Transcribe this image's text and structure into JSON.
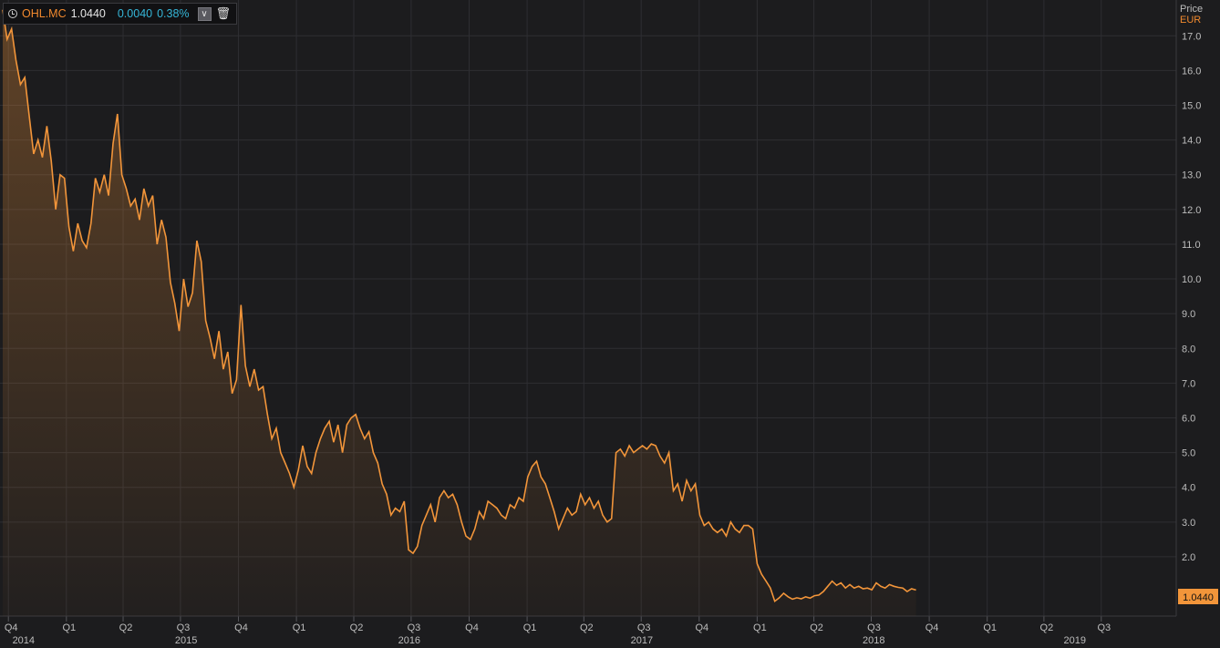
{
  "header": {
    "ticker": "OHL.MC",
    "last": "1.0440",
    "change": "0.0040",
    "change_pct": "0.38%",
    "clock_icon": "clock-icon",
    "dropdown_icon": "chevron-down-icon",
    "delete_icon": "trash-icon"
  },
  "axis": {
    "title": "Price",
    "currency": "EUR"
  },
  "colors": {
    "background": "#1c1c1e",
    "line": "#f2953a",
    "grid": "#2e2e32",
    "text": "#bdbdbd",
    "accent": "#f28a2e",
    "change": "#35b6d8"
  },
  "chart_data": {
    "type": "area",
    "ylim": [
      0.45,
      17.9
    ],
    "y_ticks": [
      "2.0",
      "3.0",
      "4.0",
      "5.0",
      "6.0",
      "7.0",
      "8.0",
      "9.0",
      "10.0",
      "11.0",
      "12.0",
      "13.0",
      "14.0",
      "15.0",
      "16.0",
      "17.0"
    ],
    "x_range": [
      "2014-09-22",
      "2019-09-29"
    ],
    "quarter_ticks": [
      {
        "label": "Q4",
        "date": "2014-10-01"
      },
      {
        "label": "Q1",
        "date": "2015-01-01"
      },
      {
        "label": "Q2",
        "date": "2015-04-01"
      },
      {
        "label": "Q3",
        "date": "2015-07-01"
      },
      {
        "label": "Q4",
        "date": "2015-10-01"
      },
      {
        "label": "Q1",
        "date": "2016-01-01"
      },
      {
        "label": "Q2",
        "date": "2016-04-01"
      },
      {
        "label": "Q3",
        "date": "2016-07-01"
      },
      {
        "label": "Q4",
        "date": "2016-10-01"
      },
      {
        "label": "Q1",
        "date": "2017-01-01"
      },
      {
        "label": "Q2",
        "date": "2017-04-01"
      },
      {
        "label": "Q3",
        "date": "2017-07-01"
      },
      {
        "label": "Q4",
        "date": "2017-10-01"
      },
      {
        "label": "Q1",
        "date": "2018-01-01"
      },
      {
        "label": "Q2",
        "date": "2018-04-01"
      },
      {
        "label": "Q3",
        "date": "2018-07-01"
      },
      {
        "label": "Q4",
        "date": "2018-10-01"
      },
      {
        "label": "Q1",
        "date": "2019-01-01"
      },
      {
        "label": "Q2",
        "date": "2019-04-01"
      },
      {
        "label": "Q3",
        "date": "2019-07-01"
      }
    ],
    "year_ticks": [
      {
        "label": "2014",
        "date": "2014-10-25"
      },
      {
        "label": "2015",
        "date": "2015-07-10"
      },
      {
        "label": "2016",
        "date": "2016-06-28"
      },
      {
        "label": "2017",
        "date": "2017-07-02"
      },
      {
        "label": "2018",
        "date": "2018-07-05"
      },
      {
        "label": "2019",
        "date": "2019-05-20"
      }
    ],
    "last_value_label": "1.0440",
    "series": [
      {
        "points": [
          [
            "2014-09-22",
            17.75
          ],
          [
            "2014-09-29",
            16.9
          ],
          [
            "2014-10-06",
            17.2
          ],
          [
            "2014-10-13",
            16.3
          ],
          [
            "2014-10-20",
            15.6
          ],
          [
            "2014-10-27",
            15.8
          ],
          [
            "2014-11-03",
            14.7
          ],
          [
            "2014-11-10",
            13.6
          ],
          [
            "2014-11-17",
            14.0
          ],
          [
            "2014-11-24",
            13.5
          ],
          [
            "2014-12-01",
            14.4
          ],
          [
            "2014-12-08",
            13.4
          ],
          [
            "2014-12-15",
            12.0
          ],
          [
            "2014-12-22",
            13.0
          ],
          [
            "2014-12-29",
            12.9
          ],
          [
            "2015-01-05",
            11.5
          ],
          [
            "2015-01-12",
            10.8
          ],
          [
            "2015-01-19",
            11.6
          ],
          [
            "2015-01-26",
            11.1
          ],
          [
            "2015-02-02",
            10.9
          ],
          [
            "2015-02-09",
            11.6
          ],
          [
            "2015-02-16",
            12.9
          ],
          [
            "2015-02-23",
            12.5
          ],
          [
            "2015-03-02",
            13.0
          ],
          [
            "2015-03-09",
            12.4
          ],
          [
            "2015-03-16",
            13.9
          ],
          [
            "2015-03-23",
            14.75
          ],
          [
            "2015-03-30",
            13.0
          ],
          [
            "2015-04-06",
            12.6
          ],
          [
            "2015-04-13",
            12.1
          ],
          [
            "2015-04-20",
            12.3
          ],
          [
            "2015-04-27",
            11.7
          ],
          [
            "2015-05-04",
            12.6
          ],
          [
            "2015-05-11",
            12.1
          ],
          [
            "2015-05-18",
            12.4
          ],
          [
            "2015-05-25",
            11.0
          ],
          [
            "2015-06-01",
            11.7
          ],
          [
            "2015-06-08",
            11.2
          ],
          [
            "2015-06-15",
            9.9
          ],
          [
            "2015-06-22",
            9.3
          ],
          [
            "2015-06-29",
            8.5
          ],
          [
            "2015-07-06",
            10.0
          ],
          [
            "2015-07-13",
            9.2
          ],
          [
            "2015-07-20",
            9.6
          ],
          [
            "2015-07-27",
            11.1
          ],
          [
            "2015-08-03",
            10.5
          ],
          [
            "2015-08-10",
            8.8
          ],
          [
            "2015-08-17",
            8.3
          ],
          [
            "2015-08-24",
            7.7
          ],
          [
            "2015-08-31",
            8.5
          ],
          [
            "2015-09-07",
            7.4
          ],
          [
            "2015-09-14",
            7.9
          ],
          [
            "2015-09-21",
            6.7
          ],
          [
            "2015-09-28",
            7.1
          ],
          [
            "2015-10-05",
            9.25
          ],
          [
            "2015-10-12",
            7.5
          ],
          [
            "2015-10-19",
            6.9
          ],
          [
            "2015-10-26",
            7.4
          ],
          [
            "2015-11-02",
            6.8
          ],
          [
            "2015-11-09",
            6.9
          ],
          [
            "2015-11-16",
            6.1
          ],
          [
            "2015-11-23",
            5.4
          ],
          [
            "2015-11-30",
            5.7
          ],
          [
            "2015-12-07",
            5.0
          ],
          [
            "2015-12-14",
            4.7
          ],
          [
            "2015-12-21",
            4.4
          ],
          [
            "2015-12-28",
            4.0
          ],
          [
            "2016-01-04",
            4.5
          ],
          [
            "2016-01-11",
            5.2
          ],
          [
            "2016-01-18",
            4.6
          ],
          [
            "2016-01-25",
            4.4
          ],
          [
            "2016-02-01",
            5.0
          ],
          [
            "2016-02-08",
            5.4
          ],
          [
            "2016-02-15",
            5.7
          ],
          [
            "2016-02-22",
            5.9
          ],
          [
            "2016-02-29",
            5.3
          ],
          [
            "2016-03-07",
            5.8
          ],
          [
            "2016-03-14",
            5.0
          ],
          [
            "2016-03-21",
            5.8
          ],
          [
            "2016-03-28",
            6.0
          ],
          [
            "2016-04-04",
            6.1
          ],
          [
            "2016-04-11",
            5.7
          ],
          [
            "2016-04-18",
            5.4
          ],
          [
            "2016-04-25",
            5.6
          ],
          [
            "2016-05-02",
            5.0
          ],
          [
            "2016-05-09",
            4.7
          ],
          [
            "2016-05-16",
            4.1
          ],
          [
            "2016-05-23",
            3.8
          ],
          [
            "2016-05-30",
            3.2
          ],
          [
            "2016-06-06",
            3.4
          ],
          [
            "2016-06-13",
            3.3
          ],
          [
            "2016-06-20",
            3.6
          ],
          [
            "2016-06-27",
            2.2
          ],
          [
            "2016-07-04",
            2.1
          ],
          [
            "2016-07-11",
            2.3
          ],
          [
            "2016-07-18",
            2.9
          ],
          [
            "2016-07-25",
            3.2
          ],
          [
            "2016-08-01",
            3.5
          ],
          [
            "2016-08-08",
            3.0
          ],
          [
            "2016-08-15",
            3.7
          ],
          [
            "2016-08-22",
            3.9
          ],
          [
            "2016-08-29",
            3.7
          ],
          [
            "2016-09-05",
            3.8
          ],
          [
            "2016-09-12",
            3.5
          ],
          [
            "2016-09-19",
            3.0
          ],
          [
            "2016-09-26",
            2.6
          ],
          [
            "2016-10-03",
            2.5
          ],
          [
            "2016-10-10",
            2.8
          ],
          [
            "2016-10-17",
            3.3
          ],
          [
            "2016-10-24",
            3.1
          ],
          [
            "2016-10-31",
            3.6
          ],
          [
            "2016-11-07",
            3.5
          ],
          [
            "2016-11-14",
            3.4
          ],
          [
            "2016-11-21",
            3.2
          ],
          [
            "2016-11-28",
            3.1
          ],
          [
            "2016-12-05",
            3.5
          ],
          [
            "2016-12-12",
            3.4
          ],
          [
            "2016-12-19",
            3.7
          ],
          [
            "2016-12-26",
            3.6
          ],
          [
            "2017-01-02",
            4.3
          ],
          [
            "2017-01-09",
            4.6
          ],
          [
            "2017-01-16",
            4.75
          ],
          [
            "2017-01-23",
            4.3
          ],
          [
            "2017-01-30",
            4.1
          ],
          [
            "2017-02-06",
            3.7
          ],
          [
            "2017-02-13",
            3.3
          ],
          [
            "2017-02-20",
            2.8
          ],
          [
            "2017-02-27",
            3.1
          ],
          [
            "2017-03-06",
            3.4
          ],
          [
            "2017-03-13",
            3.2
          ],
          [
            "2017-03-20",
            3.3
          ],
          [
            "2017-03-27",
            3.8
          ],
          [
            "2017-04-03",
            3.5
          ],
          [
            "2017-04-10",
            3.7
          ],
          [
            "2017-04-17",
            3.4
          ],
          [
            "2017-04-24",
            3.6
          ],
          [
            "2017-05-01",
            3.2
          ],
          [
            "2017-05-08",
            3.0
          ],
          [
            "2017-05-15",
            3.1
          ],
          [
            "2017-05-22",
            5.0
          ],
          [
            "2017-05-29",
            5.1
          ],
          [
            "2017-06-05",
            4.9
          ],
          [
            "2017-06-12",
            5.2
          ],
          [
            "2017-06-19",
            5.0
          ],
          [
            "2017-06-26",
            5.1
          ],
          [
            "2017-07-03",
            5.2
          ],
          [
            "2017-07-10",
            5.1
          ],
          [
            "2017-07-17",
            5.25
          ],
          [
            "2017-07-24",
            5.2
          ],
          [
            "2017-07-31",
            4.9
          ],
          [
            "2017-08-07",
            4.7
          ],
          [
            "2017-08-14",
            5.0
          ],
          [
            "2017-08-21",
            3.9
          ],
          [
            "2017-08-28",
            4.1
          ],
          [
            "2017-09-04",
            3.6
          ],
          [
            "2017-09-11",
            4.2
          ],
          [
            "2017-09-18",
            3.9
          ],
          [
            "2017-09-25",
            4.1
          ],
          [
            "2017-10-02",
            3.2
          ],
          [
            "2017-10-09",
            2.9
          ],
          [
            "2017-10-16",
            3.0
          ],
          [
            "2017-10-23",
            2.8
          ],
          [
            "2017-10-30",
            2.7
          ],
          [
            "2017-11-06",
            2.8
          ],
          [
            "2017-11-13",
            2.6
          ],
          [
            "2017-11-20",
            3.0
          ],
          [
            "2017-11-27",
            2.8
          ],
          [
            "2017-12-04",
            2.7
          ],
          [
            "2017-12-11",
            2.9
          ],
          [
            "2017-12-18",
            2.9
          ],
          [
            "2017-12-25",
            2.8
          ],
          [
            "2018-01-01",
            1.8
          ],
          [
            "2018-01-08",
            1.5
          ],
          [
            "2018-01-15",
            1.3
          ],
          [
            "2018-01-22",
            1.1
          ],
          [
            "2018-01-29",
            0.72
          ],
          [
            "2018-02-05",
            0.82
          ],
          [
            "2018-02-12",
            0.95
          ],
          [
            "2018-02-19",
            0.85
          ],
          [
            "2018-02-26",
            0.78
          ],
          [
            "2018-03-05",
            0.82
          ],
          [
            "2018-03-12",
            0.79
          ],
          [
            "2018-03-19",
            0.85
          ],
          [
            "2018-03-26",
            0.81
          ],
          [
            "2018-04-02",
            0.88
          ],
          [
            "2018-04-09",
            0.9
          ],
          [
            "2018-04-16",
            1.0
          ],
          [
            "2018-04-23",
            1.15
          ],
          [
            "2018-04-30",
            1.3
          ],
          [
            "2018-05-07",
            1.18
          ],
          [
            "2018-05-14",
            1.25
          ],
          [
            "2018-05-21",
            1.1
          ],
          [
            "2018-05-28",
            1.2
          ],
          [
            "2018-06-04",
            1.1
          ],
          [
            "2018-06-11",
            1.15
          ],
          [
            "2018-06-18",
            1.08
          ],
          [
            "2018-06-25",
            1.1
          ],
          [
            "2018-07-02",
            1.05
          ],
          [
            "2018-07-09",
            1.25
          ],
          [
            "2018-07-16",
            1.15
          ],
          [
            "2018-07-23",
            1.1
          ],
          [
            "2018-07-30",
            1.2
          ],
          [
            "2018-08-06",
            1.15
          ],
          [
            "2018-08-13",
            1.12
          ],
          [
            "2018-08-20",
            1.1
          ],
          [
            "2018-08-27",
            1.0
          ],
          [
            "2018-09-03",
            1.08
          ],
          [
            "2018-09-10",
            1.044
          ]
        ]
      }
    ]
  }
}
